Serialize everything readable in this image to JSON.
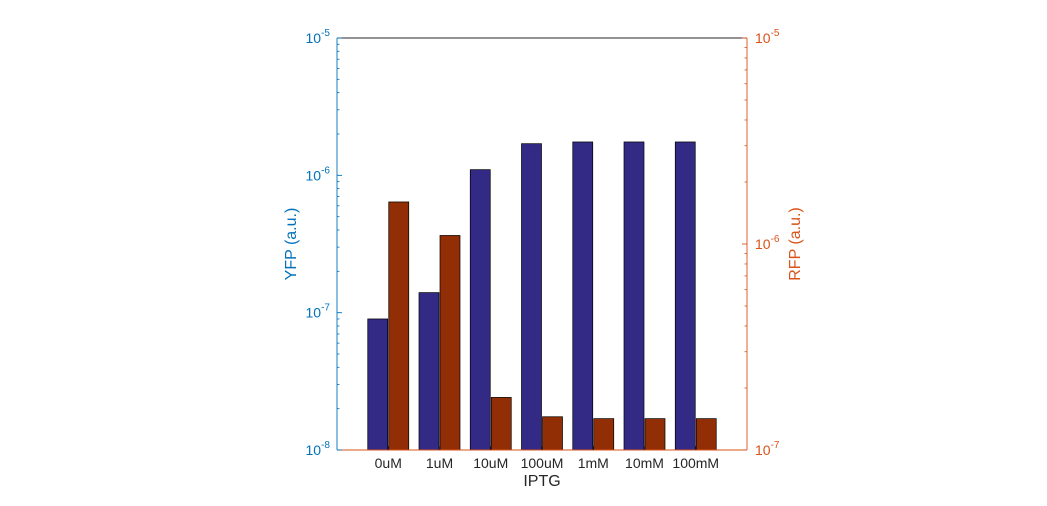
{
  "chart_data": {
    "type": "bar",
    "xlabel": "IPTG",
    "categories": [
      "0uM",
      "1uM",
      "10uM",
      "100uM",
      "1mM",
      "10mM",
      "100mM"
    ],
    "left_axis": {
      "label": "YFP (a.u.)",
      "scale": "log",
      "ylim": [
        1e-08,
        1e-05
      ],
      "ticks": [
        {
          "value": 1e-08,
          "base": "10",
          "exp": "-8"
        },
        {
          "value": 1e-07,
          "base": "10",
          "exp": "-7"
        },
        {
          "value": 1e-06,
          "base": "10",
          "exp": "-6"
        },
        {
          "value": 1e-05,
          "base": "10",
          "exp": "-5"
        }
      ],
      "color": "#0072BD"
    },
    "right_axis": {
      "label": "RFP (a.u.)",
      "scale": "log",
      "ylim": [
        1e-07,
        1e-05
      ],
      "ticks": [
        {
          "value": 1e-07,
          "base": "10",
          "exp": "-7"
        },
        {
          "value": 1e-06,
          "base": "10",
          "exp": "-6"
        },
        {
          "value": 1e-05,
          "base": "10",
          "exp": "-5"
        }
      ],
      "color": "#D95319"
    },
    "series": [
      {
        "axis": "left",
        "color": "#332A85",
        "values": [
          9e-08,
          1.4e-07,
          1.1e-06,
          1.7e-06,
          1.75e-06,
          1.75e-06,
          1.75e-06
        ]
      },
      {
        "axis": "right",
        "color": "#922E06",
        "values": [
          1.6e-06,
          1.1e-06,
          1.8e-07,
          1.45e-07,
          1.42e-07,
          1.42e-07,
          1.42e-07
        ]
      }
    ],
    "grid": false,
    "legend": "none"
  }
}
